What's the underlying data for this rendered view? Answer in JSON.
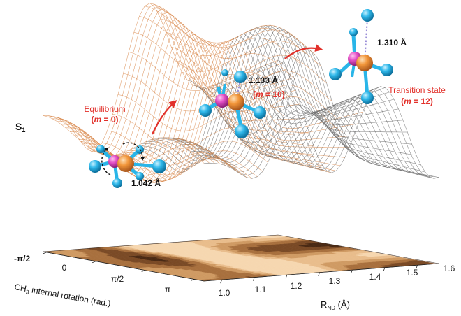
{
  "state_label": {
    "main": "S",
    "sub": "1"
  },
  "annotations": {
    "equilibrium": {
      "title": "Equilibrium",
      "m_var": "m",
      "m_rest": " = 0"
    },
    "intermediate": {
      "distance": "1.133 Å",
      "m_var": "m",
      "m_rest": " = 10"
    },
    "transition": {
      "title": "Transition state",
      "m_var": "m",
      "m_rest": " = 12"
    },
    "equilibrium_distance": "1.042 Å",
    "transition_distance": "1.310 Å"
  },
  "axes": {
    "rnd": {
      "main": "R",
      "sub": "ND",
      "unit": " (Å)",
      "ticks": [
        "1.0",
        "1.1",
        "1.2",
        "1.3",
        "1.4",
        "1.5",
        "1.6"
      ]
    },
    "rotation": {
      "ch": "CH",
      "sub": "3",
      "rest": " internal rotation (rad.)",
      "ticks": [
        "-π/2",
        "0",
        "π/2",
        "π"
      ]
    }
  },
  "colors": {
    "surface_line": "#d98a4e",
    "surface_shadow": "#6b6b6b",
    "annotation_red": "#e2302a",
    "hydrogen": "#29b5e8",
    "carbon": "#f0963c",
    "nitrogen": "#e64fc8",
    "bond_dash": "#9b8fd8",
    "contour_dark": "#1a0f08",
    "contour_light": "#f6d7b0"
  }
}
